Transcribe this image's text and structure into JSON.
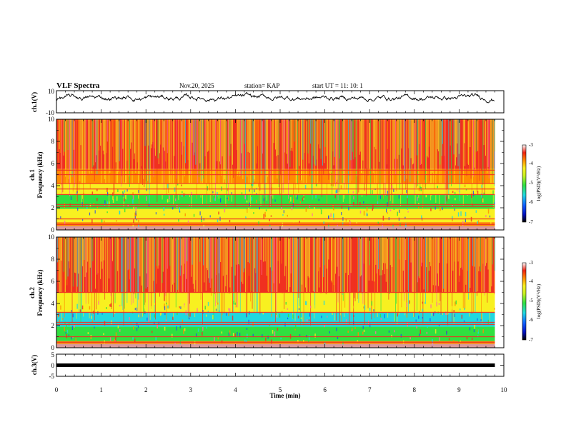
{
  "header": {
    "title": "VLF Spectra",
    "date": "Nov.20, 2025",
    "station": "station= KAP",
    "start": "start  UT  =   11: 10: 1"
  },
  "colors": {
    "red": "#f03020",
    "orange": "#ff8c00",
    "yellow": "#f8f020",
    "green": "#30e040",
    "cyan": "#20d8e0",
    "blue": "#1040ff",
    "pink": "#ff70a0"
  },
  "chart_data": [
    {
      "type": "line",
      "name": "ch1-waveform",
      "ylabel": "ch.1(V)",
      "ylim": [
        -10,
        10
      ],
      "yticks": [
        "10",
        "-10"
      ],
      "x_range_min": [
        0,
        9.8
      ],
      "approx_level_v": 3.5,
      "approx_amplitude_v": 3.5
    },
    {
      "type": "heatmap",
      "name": "ch1-spectrogram",
      "ylabel": "ch.1\nFrequency (kHz)",
      "ylabel_lines": [
        "ch.1",
        "Frequency  (kHz)"
      ],
      "ylim": [
        0,
        10
      ],
      "yticks": [
        "0",
        "2",
        "4",
        "6",
        "8",
        "10"
      ],
      "x_range_min": [
        0,
        9.8
      ],
      "colorbar": {
        "label": "log(PSD)(V²/Hz)",
        "range": [
          -7,
          -3
        ],
        "ticks": [
          "-3",
          "-4",
          "-5",
          "-6",
          "-7"
        ]
      },
      "horizontal_lines_khz": [
        5.4,
        5.0,
        4.2,
        3.7,
        3.2,
        2.3,
        2.1,
        1.0,
        0.5
      ]
    },
    {
      "type": "heatmap",
      "name": "ch2-spectrogram",
      "ylabel": "ch.2\nFrequency (kHz)",
      "ylabel_lines": [
        "ch.2",
        "Frequency  (kHz)"
      ],
      "ylim": [
        0,
        10
      ],
      "yticks": [
        "0",
        "2",
        "4",
        "6",
        "8",
        "10"
      ],
      "x_range_min": [
        0,
        9.8
      ],
      "colorbar": {
        "label": "log(PSD)(V²/Hz)",
        "range": [
          -7,
          -3
        ],
        "ticks": [
          "-3",
          "-4",
          "-5",
          "-6",
          "-7"
        ]
      },
      "horizontal_lines_khz": [
        5.0,
        3.2,
        2.3,
        2.1,
        1.0,
        0.5
      ]
    },
    {
      "type": "line",
      "name": "ch3-waveform",
      "ylabel": "ch.3(V)",
      "ylim": [
        -5,
        5
      ],
      "yticks": [
        "5",
        "0",
        "-5"
      ],
      "x_range_min": [
        0,
        9.8
      ],
      "approx_level_v": 0.0
    }
  ],
  "xaxis": {
    "label": "Time  (min)",
    "range": [
      0,
      10
    ],
    "ticks": [
      "0",
      "1",
      "2",
      "3",
      "4",
      "5",
      "6",
      "7",
      "8",
      "9",
      "10"
    ]
  }
}
